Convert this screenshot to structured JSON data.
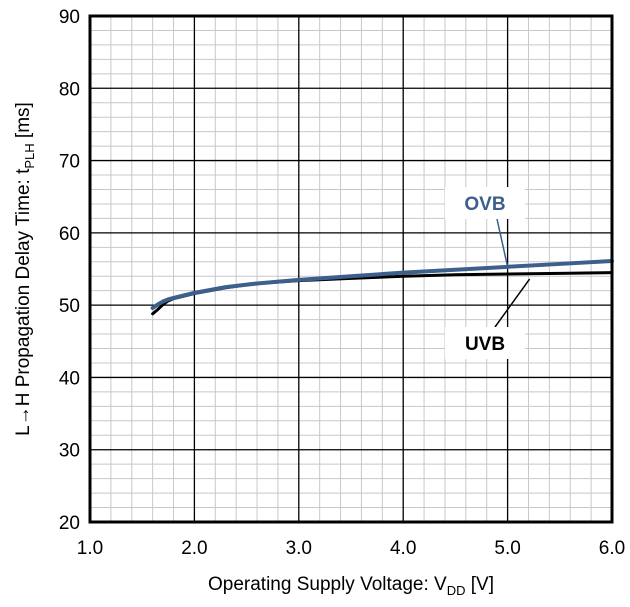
{
  "chart_data": {
    "type": "line",
    "xlabel": {
      "main": "Operating Supply Voltage: V",
      "sub": "DD",
      "unit": " [V]"
    },
    "ylabel": {
      "main": "L→H Propagation Delay Time: t",
      "sub": "PLH",
      "unit": " [ms]"
    },
    "xlim": [
      1.0,
      6.0
    ],
    "ylim": [
      20,
      90
    ],
    "x_ticks": [
      "1.0",
      "2.0",
      "3.0",
      "4.0",
      "5.0",
      "6.0"
    ],
    "y_ticks": [
      "20",
      "30",
      "40",
      "50",
      "60",
      "70",
      "80",
      "90"
    ],
    "x_major_step": 1.0,
    "x_minor_step": 0.2,
    "y_major_step": 10,
    "y_minor_step": 2,
    "grid": true,
    "series": [
      {
        "name": "UVB",
        "color": "#000000",
        "x": [
          1.6,
          1.65,
          1.7,
          1.75,
          1.8,
          2.0,
          2.3,
          2.6,
          3.0,
          3.5,
          4.0,
          4.5,
          5.0,
          5.5,
          6.0
        ],
        "y": [
          48.8,
          49.4,
          50.1,
          50.6,
          50.9,
          51.6,
          52.4,
          53.0,
          53.4,
          53.7,
          54.0,
          54.2,
          54.3,
          54.4,
          54.5
        ]
      },
      {
        "name": "OVB",
        "color": "#3c5f8c",
        "x": [
          1.6,
          1.65,
          1.7,
          1.75,
          1.8,
          2.0,
          2.3,
          2.6,
          3.0,
          3.5,
          4.0,
          4.5,
          5.0,
          5.5,
          6.0
        ],
        "y": [
          49.6,
          50.1,
          50.5,
          50.8,
          51.0,
          51.7,
          52.5,
          53.0,
          53.5,
          54.0,
          54.5,
          54.9,
          55.3,
          55.7,
          56.1
        ]
      }
    ],
    "annotations": [
      {
        "label": "OVB",
        "color": "#3c5f8c",
        "point": [
          5.0,
          55.3
        ]
      },
      {
        "label": "UVB",
        "color": "#000000",
        "point": [
          5.0,
          54.3
        ]
      }
    ]
  }
}
